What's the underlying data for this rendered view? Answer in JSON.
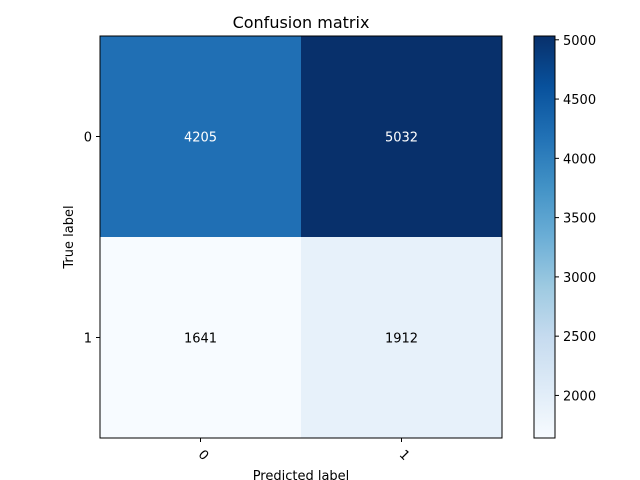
{
  "chart_data": {
    "type": "heatmap",
    "title": "Confusion matrix",
    "xlabel": "Predicted label",
    "ylabel": "True label",
    "x_categories": [
      "0",
      "1"
    ],
    "y_categories": [
      "0",
      "1"
    ],
    "values": [
      [
        4205,
        5032
      ],
      [
        1641,
        1912
      ]
    ],
    "colormap": "Blues",
    "colorbar": {
      "ticks": [
        2000,
        2500,
        3000,
        3500,
        4000,
        4500,
        5000
      ],
      "tick_labels": [
        "2000",
        "2500",
        "3000",
        "3500",
        "4000",
        "4500",
        "5000"
      ],
      "range": [
        1641,
        5032
      ]
    },
    "text_color_dark": "#ffffff",
    "text_color_light": "#000000",
    "grid": false
  }
}
